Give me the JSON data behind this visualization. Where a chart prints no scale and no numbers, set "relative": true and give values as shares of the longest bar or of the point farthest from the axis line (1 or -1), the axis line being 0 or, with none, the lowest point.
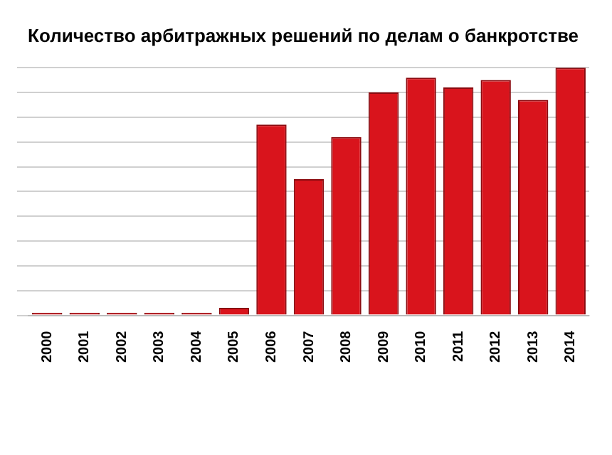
{
  "chart_data": {
    "type": "bar",
    "title": "Количество арбитражных решений по делам о банкротстве",
    "relative": true,
    "grid": "y",
    "categories": [
      "2000",
      "2001",
      "2002",
      "2003",
      "2004",
      "2005",
      "2006",
      "2007",
      "2008",
      "2009",
      "2010",
      "2011",
      "2012",
      "2013",
      "2014"
    ],
    "series": [
      {
        "color": "#d9141c",
        "values": [
          0.01,
          0.01,
          0.01,
          0.01,
          0.01,
          0.03,
          0.77,
          0.55,
          0.72,
          0.9,
          0.96,
          0.92,
          0.95,
          0.87,
          1
        ]
      }
    ]
  }
}
